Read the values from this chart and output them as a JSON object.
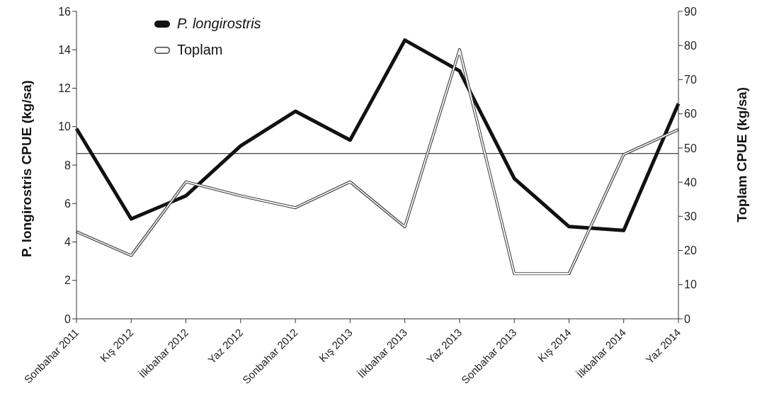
{
  "chart_data": {
    "type": "line",
    "ylabel": "P. longirostris  CPUE (kg/sa)",
    "y2label": "Toplam  CPUE (kg/sa)",
    "categories": [
      "Sonbahar 2011",
      "Kış 2012",
      "İlkbahar 2012",
      "Yaz 2012",
      "Sonbahar 2012",
      "Kış 2013",
      "İlkbahar 2013",
      "Yaz 2013",
      "Sonbahar 2013",
      "Kış 2014",
      "İlkbahar 2014",
      "Yaz 2014"
    ],
    "series": [
      {
        "name": "P. longirostris",
        "color": "#111111",
        "values": [
          9.9,
          5.2,
          6.4,
          9.0,
          10.8,
          9.3,
          14.5,
          12.9,
          7.3,
          4.8,
          4.6,
          11.2
        ]
      },
      {
        "name": "Toplam",
        "color": "#444444",
        "axis": "y2",
        "values": [
          25.5,
          18.5,
          40.1,
          36,
          32.5,
          40.1,
          26.9,
          78.8,
          13.2,
          13.2,
          48.1,
          55.4
        ]
      }
    ],
    "ylim": [
      0,
      16
    ],
    "yticks": [
      0,
      2,
      4,
      6,
      8,
      10,
      12,
      14,
      16
    ],
    "y2lim": [
      0,
      90
    ],
    "y2ticks": [
      0,
      10,
      20,
      30,
      40,
      50,
      60,
      70,
      80,
      90
    ],
    "ref_lines": [
      {
        "axis": "y",
        "value": 8.6,
        "color": "#111111"
      }
    ],
    "grid": false,
    "legend": "top left",
    "marker": "none",
    "line_style": "solid"
  }
}
